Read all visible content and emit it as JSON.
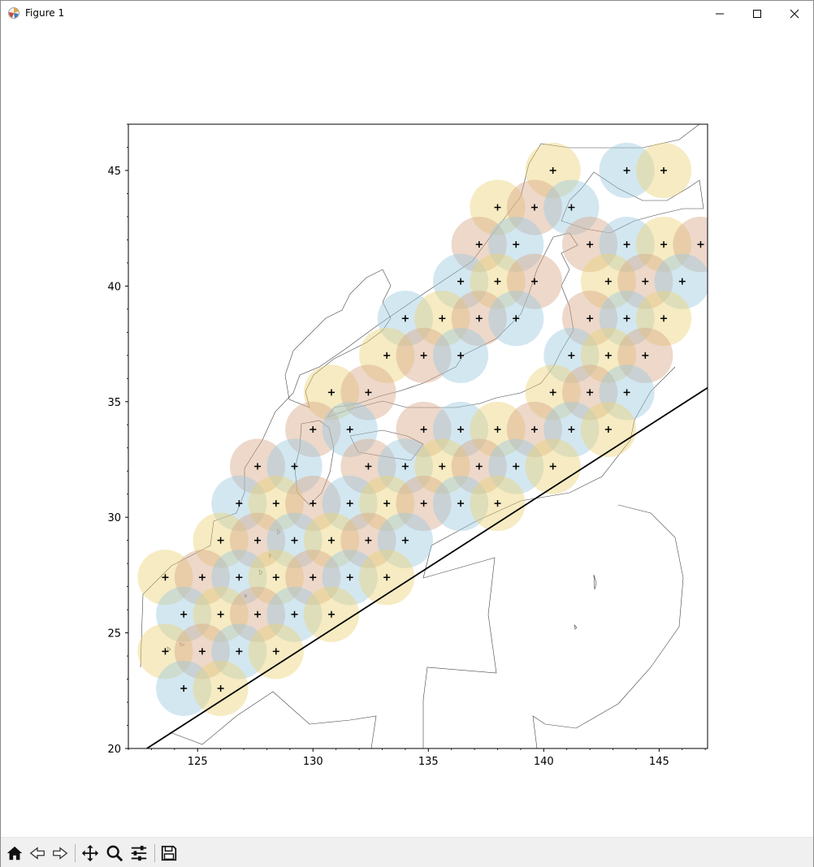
{
  "window": {
    "title": "Figure 1"
  },
  "toolbar": {
    "items": [
      "home-icon",
      "back-icon",
      "forward-icon",
      "pan-icon",
      "zoom-icon",
      "configure-subplots-icon",
      "save-icon"
    ]
  },
  "colors": {
    "blue_circle": "#9ecae1",
    "yellow_circle": "#ecd277",
    "brown_circle": "#d7a98a",
    "coastline": "#444444",
    "line": "#000000"
  },
  "chart_data": {
    "type": "scatter",
    "title": "",
    "xlabel": "",
    "ylabel": "",
    "xlim": [
      122,
      147.1
    ],
    "ylim": [
      20,
      47
    ],
    "xticks": [
      125,
      130,
      135,
      140,
      145
    ],
    "yticks": [
      20,
      25,
      30,
      35,
      40,
      45
    ],
    "circle_radius_deg": 1.2,
    "line": {
      "x": [
        122.8,
        147.1
      ],
      "y": [
        20.0,
        35.6
      ]
    },
    "grid": false,
    "legend": "none",
    "points": [
      {
        "x": 140.4,
        "y": 45.0,
        "c": "yellow"
      },
      {
        "x": 143.6,
        "y": 45.0,
        "c": "blue"
      },
      {
        "x": 145.2,
        "y": 45.0,
        "c": "yellow"
      },
      {
        "x": 138.0,
        "y": 43.4,
        "c": "yellow"
      },
      {
        "x": 139.6,
        "y": 43.4,
        "c": "brown"
      },
      {
        "x": 141.2,
        "y": 43.4,
        "c": "blue"
      },
      {
        "x": 137.2,
        "y": 41.8,
        "c": "brown"
      },
      {
        "x": 138.8,
        "y": 41.8,
        "c": "blue"
      },
      {
        "x": 142.0,
        "y": 41.8,
        "c": "brown"
      },
      {
        "x": 143.6,
        "y": 41.8,
        "c": "blue"
      },
      {
        "x": 145.2,
        "y": 41.8,
        "c": "yellow"
      },
      {
        "x": 146.8,
        "y": 41.8,
        "c": "brown"
      },
      {
        "x": 136.4,
        "y": 40.2,
        "c": "blue"
      },
      {
        "x": 138.0,
        "y": 40.2,
        "c": "yellow"
      },
      {
        "x": 139.6,
        "y": 40.2,
        "c": "brown"
      },
      {
        "x": 142.8,
        "y": 40.2,
        "c": "yellow"
      },
      {
        "x": 144.4,
        "y": 40.2,
        "c": "brown"
      },
      {
        "x": 146.0,
        "y": 40.2,
        "c": "blue"
      },
      {
        "x": 134.0,
        "y": 38.6,
        "c": "blue"
      },
      {
        "x": 135.6,
        "y": 38.6,
        "c": "yellow"
      },
      {
        "x": 137.2,
        "y": 38.6,
        "c": "brown"
      },
      {
        "x": 138.8,
        "y": 38.6,
        "c": "blue"
      },
      {
        "x": 142.0,
        "y": 38.6,
        "c": "brown"
      },
      {
        "x": 143.6,
        "y": 38.6,
        "c": "blue"
      },
      {
        "x": 145.2,
        "y": 38.6,
        "c": "yellow"
      },
      {
        "x": 133.2,
        "y": 37.0,
        "c": "yellow"
      },
      {
        "x": 134.8,
        "y": 37.0,
        "c": "brown"
      },
      {
        "x": 136.4,
        "y": 37.0,
        "c": "blue"
      },
      {
        "x": 141.2,
        "y": 37.0,
        "c": "blue"
      },
      {
        "x": 142.8,
        "y": 37.0,
        "c": "yellow"
      },
      {
        "x": 144.4,
        "y": 37.0,
        "c": "brown"
      },
      {
        "x": 130.8,
        "y": 35.4,
        "c": "yellow"
      },
      {
        "x": 132.4,
        "y": 35.4,
        "c": "brown"
      },
      {
        "x": 140.4,
        "y": 35.4,
        "c": "yellow"
      },
      {
        "x": 142.0,
        "y": 35.4,
        "c": "brown"
      },
      {
        "x": 143.6,
        "y": 35.4,
        "c": "blue"
      },
      {
        "x": 130.0,
        "y": 33.8,
        "c": "brown"
      },
      {
        "x": 131.6,
        "y": 33.8,
        "c": "blue"
      },
      {
        "x": 134.8,
        "y": 33.8,
        "c": "brown"
      },
      {
        "x": 136.4,
        "y": 33.8,
        "c": "blue"
      },
      {
        "x": 138.0,
        "y": 33.8,
        "c": "yellow"
      },
      {
        "x": 139.6,
        "y": 33.8,
        "c": "brown"
      },
      {
        "x": 141.2,
        "y": 33.8,
        "c": "blue"
      },
      {
        "x": 142.8,
        "y": 33.8,
        "c": "yellow"
      },
      {
        "x": 127.6,
        "y": 32.2,
        "c": "brown"
      },
      {
        "x": 129.2,
        "y": 32.2,
        "c": "blue"
      },
      {
        "x": 132.4,
        "y": 32.2,
        "c": "brown"
      },
      {
        "x": 134.0,
        "y": 32.2,
        "c": "blue"
      },
      {
        "x": 135.6,
        "y": 32.2,
        "c": "yellow"
      },
      {
        "x": 137.2,
        "y": 32.2,
        "c": "brown"
      },
      {
        "x": 138.8,
        "y": 32.2,
        "c": "blue"
      },
      {
        "x": 140.4,
        "y": 32.2,
        "c": "yellow"
      },
      {
        "x": 126.8,
        "y": 30.6,
        "c": "blue"
      },
      {
        "x": 128.4,
        "y": 30.6,
        "c": "yellow"
      },
      {
        "x": 130.0,
        "y": 30.6,
        "c": "brown"
      },
      {
        "x": 131.6,
        "y": 30.6,
        "c": "blue"
      },
      {
        "x": 133.2,
        "y": 30.6,
        "c": "yellow"
      },
      {
        "x": 134.8,
        "y": 30.6,
        "c": "brown"
      },
      {
        "x": 136.4,
        "y": 30.6,
        "c": "blue"
      },
      {
        "x": 138.0,
        "y": 30.6,
        "c": "yellow"
      },
      {
        "x": 126.0,
        "y": 29.0,
        "c": "yellow"
      },
      {
        "x": 127.6,
        "y": 29.0,
        "c": "brown"
      },
      {
        "x": 129.2,
        "y": 29.0,
        "c": "blue"
      },
      {
        "x": 130.8,
        "y": 29.0,
        "c": "yellow"
      },
      {
        "x": 132.4,
        "y": 29.0,
        "c": "brown"
      },
      {
        "x": 134.0,
        "y": 29.0,
        "c": "blue"
      },
      {
        "x": 123.6,
        "y": 27.4,
        "c": "yellow"
      },
      {
        "x": 125.2,
        "y": 27.4,
        "c": "brown"
      },
      {
        "x": 126.8,
        "y": 27.4,
        "c": "blue"
      },
      {
        "x": 128.4,
        "y": 27.4,
        "c": "yellow"
      },
      {
        "x": 130.0,
        "y": 27.4,
        "c": "brown"
      },
      {
        "x": 131.6,
        "y": 27.4,
        "c": "blue"
      },
      {
        "x": 133.2,
        "y": 27.4,
        "c": "yellow"
      },
      {
        "x": 124.4,
        "y": 25.8,
        "c": "blue"
      },
      {
        "x": 126.0,
        "y": 25.8,
        "c": "yellow"
      },
      {
        "x": 127.6,
        "y": 25.8,
        "c": "brown"
      },
      {
        "x": 129.2,
        "y": 25.8,
        "c": "blue"
      },
      {
        "x": 130.8,
        "y": 25.8,
        "c": "yellow"
      },
      {
        "x": 123.6,
        "y": 24.2,
        "c": "yellow"
      },
      {
        "x": 125.2,
        "y": 24.2,
        "c": "brown"
      },
      {
        "x": 126.8,
        "y": 24.2,
        "c": "blue"
      },
      {
        "x": 128.4,
        "y": 24.2,
        "c": "yellow"
      },
      {
        "x": 124.4,
        "y": 22.6,
        "c": "blue"
      },
      {
        "x": 126.0,
        "y": 22.6,
        "c": "yellow"
      }
    ]
  }
}
